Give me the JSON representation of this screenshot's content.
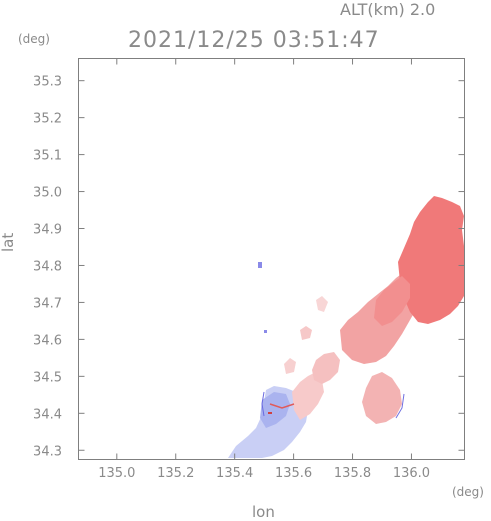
{
  "header": {
    "altitude_label": "ALT(km) 2.0",
    "timestamp": "2021/12/25 03:51:47"
  },
  "axes": {
    "x_title": "lon",
    "y_title": "lat",
    "x_unit": "(deg)",
    "y_unit": "(deg)",
    "x_range": [
      134.87,
      136.18
    ],
    "y_range": [
      34.275,
      35.36
    ],
    "x_ticks": [
      "135.0",
      "135.2",
      "135.4",
      "135.6",
      "135.8",
      "136.0"
    ],
    "y_ticks": [
      "34.3",
      "34.4",
      "34.5",
      "34.6",
      "34.7",
      "34.8",
      "34.9",
      "35.0",
      "35.1",
      "35.2",
      "35.3"
    ]
  },
  "colors": {
    "frame": "#7f7f7f",
    "strong_red": "#f07a7a",
    "medium_red": "#f3a9a9",
    "light_red": "#f6c4c4",
    "light_blue": "#c8cef5",
    "blue": "#aab2ef",
    "red_edge": "#e05050",
    "blue_edge": "#6a6ae0"
  }
}
